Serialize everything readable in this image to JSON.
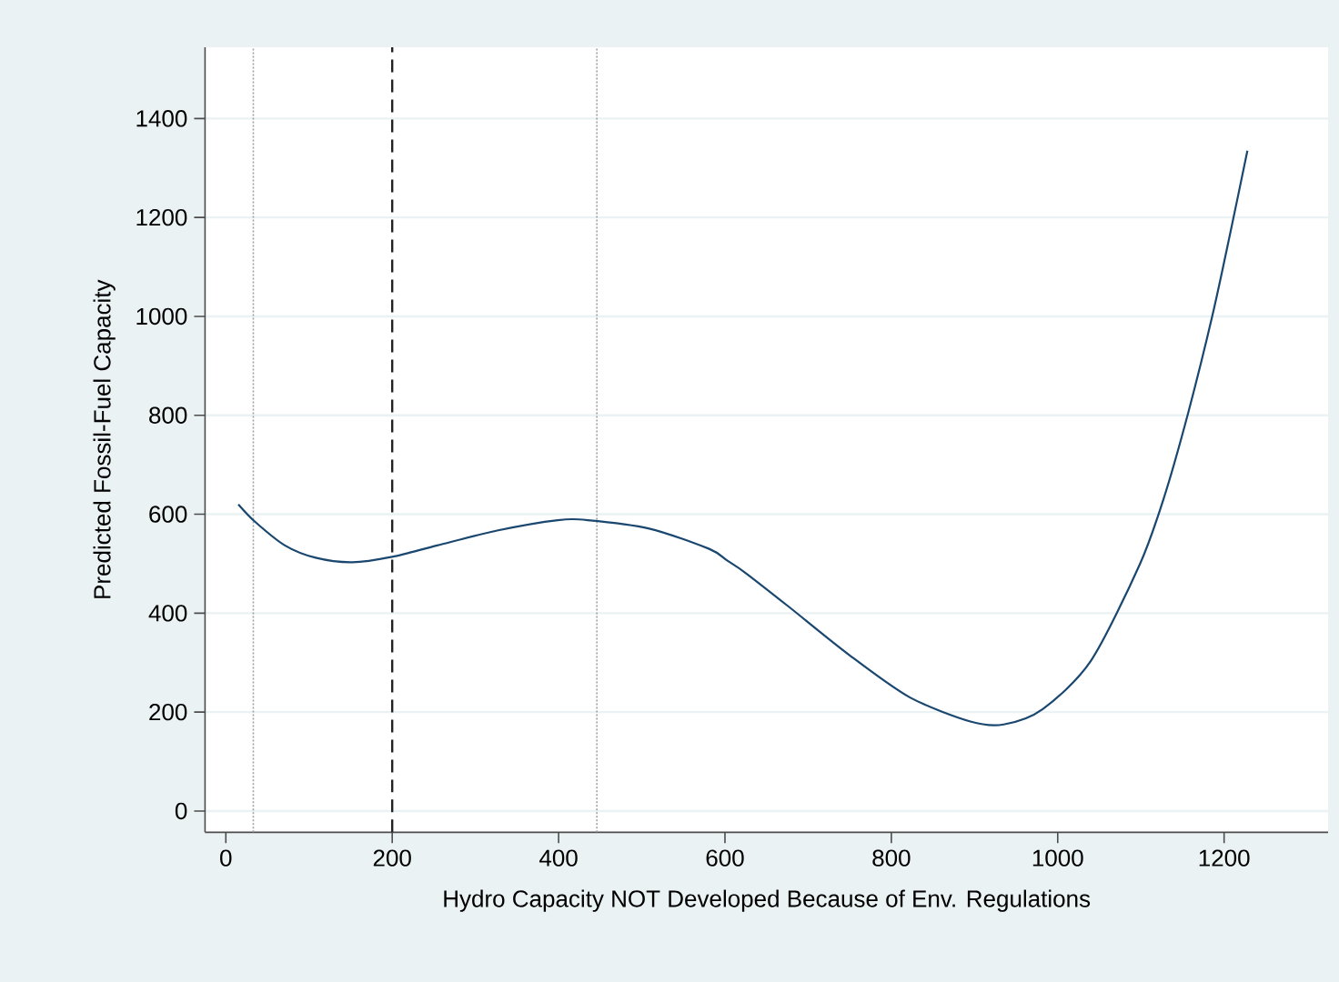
{
  "chart_data": {
    "type": "line",
    "xlabel": "Hydro Capacity NOT Developed Because of Env. Regulations",
    "ylabel": "Predicted Fossil-Fuel Capacity",
    "xlim": [
      -25,
      1325
    ],
    "ylim": [
      -43,
      1544
    ],
    "xticks": [
      0,
      200,
      400,
      600,
      800,
      1000,
      1200
    ],
    "yticks": [
      0,
      200,
      400,
      600,
      800,
      1000,
      1200,
      1400
    ],
    "grid": "y",
    "series": [
      {
        "color": "#1a476f",
        "x": [
          15,
          35,
          71,
          108,
          152,
          200,
          254,
          326,
          399,
          435,
          509,
          581,
          603,
          625,
          676,
          749,
          822,
          895,
          935,
          982,
          1040,
          1099,
          1128,
          1157,
          1186,
          1208,
          1228
        ],
        "values": [
          620,
          585,
          537,
          512,
          503,
          514,
          537,
          567,
          588,
          588,
          571,
          530,
          506,
          481,
          414,
          316,
          230,
          181,
          175,
          206,
          304,
          500,
          635,
          806,
          1002,
          1173,
          1335
        ]
      }
    ],
    "ref_lines": [
      {
        "axis": "x",
        "value": 33,
        "color": "#a0a0a0",
        "line_style": "dotted"
      },
      {
        "axis": "x",
        "value": 200,
        "color": "#222222",
        "line_style": "dashed"
      },
      {
        "axis": "x",
        "value": 446,
        "color": "#a0a0a0",
        "line_style": "dotted"
      }
    ]
  }
}
